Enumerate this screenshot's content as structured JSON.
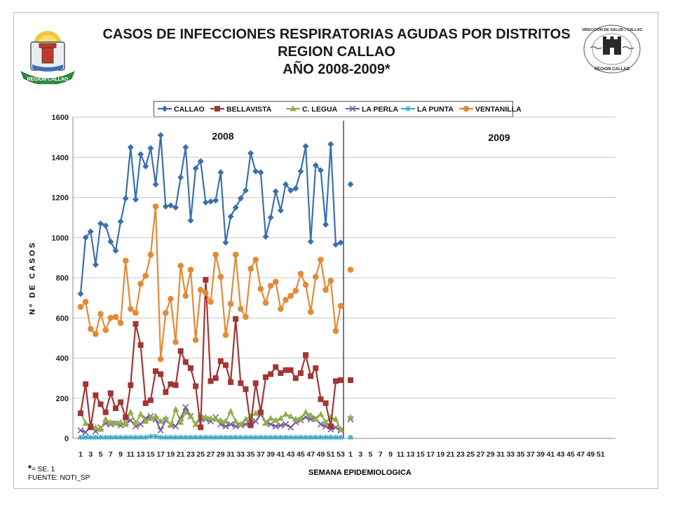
{
  "header": {
    "title_line1": "CASOS DE INFECCIONES RESPIRATORIAS AGUDAS POR DISTRITOS",
    "title_line2": "REGION  CALLAO",
    "title_line3": "AÑO 2008-2009*",
    "logo_left_text": "REGION CALLAO",
    "logo_right_text_top": "DIRECCIÓN DE SALUD I CALLAO",
    "logo_right_text_bottom": "REGION CALLAO"
  },
  "footer": {
    "note_star": "*",
    "note_text": "= SE. 1",
    "source": "FUENTE: NOTI_SP"
  },
  "colors": {
    "CALLAO": "#3a70b0",
    "BELLAVISTA": "#a33535",
    "C. LEGUA": "#8fb04a",
    "LA PERLA": "#7a5a9e",
    "LA PUNTA": "#3aa8c6",
    "VENTANILLA": "#e28a36"
  },
  "chart_data": {
    "type": "line",
    "xlabel": "SEMANA EPIDEMIOLOGICA",
    "ylabel": "Nº DE CASOS",
    "ylim": [
      0,
      1600
    ],
    "yticks": [
      0,
      200,
      400,
      600,
      800,
      1000,
      1200,
      1400,
      1600
    ],
    "grid": true,
    "legend_position": "top",
    "period_labels": [
      "2008",
      "2009"
    ],
    "x_2008_ticks": [
      "1",
      "3",
      "5",
      "7",
      "9",
      "11",
      "13",
      "15",
      "17",
      "19",
      "21",
      "23",
      "25",
      "27",
      "29",
      "31",
      "33",
      "35",
      "37",
      "39",
      "41",
      "43",
      "45",
      "47",
      "49",
      "51",
      "53"
    ],
    "x_2009_ticks": [
      "1",
      "3",
      "5",
      "7",
      "9",
      "11",
      "13",
      "15",
      "17",
      "19",
      "21",
      "23",
      "25",
      "27",
      "29",
      "31",
      "33",
      "35",
      "37",
      "39",
      "41",
      "43",
      "45",
      "47",
      "49",
      "51"
    ],
    "series": [
      {
        "name": "CALLAO",
        "marker": "diamond",
        "values_2008": [
          720,
          1000,
          1030,
          865,
          1070,
          1060,
          980,
          935,
          1080,
          1195,
          1450,
          1190,
          1415,
          1355,
          1445,
          1265,
          1510,
          1155,
          1160,
          1150,
          1300,
          1450,
          1085,
          1345,
          1380,
          1175,
          1180,
          1185,
          1325,
          975,
          1105,
          1150,
          1195,
          1235,
          1420,
          1330,
          1325,
          1005,
          1100,
          1230,
          1135,
          1265,
          1235,
          1245,
          1330,
          1455,
          980,
          1360,
          1335,
          1065,
          1465,
          965,
          975
        ],
        "values_2009": [
          1265
        ]
      },
      {
        "name": "BELLAVISTA",
        "marker": "square",
        "values_2008": [
          125,
          270,
          55,
          215,
          170,
          130,
          225,
          150,
          180,
          105,
          265,
          570,
          465,
          175,
          190,
          335,
          320,
          230,
          270,
          265,
          435,
          380,
          350,
          260,
          55,
          790,
          285,
          300,
          385,
          365,
          280,
          595,
          275,
          245,
          65,
          275,
          130,
          305,
          320,
          355,
          325,
          340,
          340,
          300,
          325,
          415,
          310,
          350,
          195,
          175,
          60,
          285,
          290
        ],
        "values_2009": [
          290
        ]
      },
      {
        "name": "C. LEGUA",
        "marker": "triangle",
        "values_2008": [
          130,
          75,
          55,
          55,
          45,
          95,
          80,
          75,
          80,
          70,
          130,
          75,
          120,
          85,
          100,
          110,
          85,
          100,
          65,
          145,
          80,
          130,
          110,
          70,
          115,
          105,
          100,
          95,
          90,
          85,
          135,
          85,
          70,
          95,
          110,
          125,
          140,
          75,
          100,
          90,
          100,
          120,
          110,
          95,
          100,
          130,
          115,
          95,
          120,
          80,
          105,
          95,
          45
        ],
        "values_2009": [
          105
        ]
      },
      {
        "name": "LA PERLA",
        "marker": "cross",
        "values_2008": [
          40,
          30,
          60,
          35,
          55,
          75,
          70,
          75,
          65,
          80,
          90,
          60,
          70,
          100,
          110,
          95,
          40,
          90,
          70,
          60,
          100,
          155,
          110,
          70,
          100,
          95,
          85,
          105,
          70,
          60,
          70,
          60,
          65,
          70,
          80,
          85,
          120,
          80,
          70,
          60,
          65,
          70,
          55,
          80,
          90,
          105,
          95,
          100,
          70,
          60,
          45,
          55,
          40
        ],
        "values_2009": [
          95
        ]
      },
      {
        "name": "LA PUNTA",
        "marker": "asterisk",
        "values_2008": [
          5,
          5,
          5,
          5,
          5,
          5,
          5,
          5,
          5,
          5,
          5,
          5,
          5,
          5,
          10,
          10,
          5,
          5,
          5,
          5,
          5,
          5,
          5,
          5,
          5,
          5,
          5,
          5,
          5,
          5,
          5,
          5,
          5,
          5,
          5,
          5,
          5,
          5,
          5,
          5,
          5,
          5,
          5,
          5,
          5,
          5,
          5,
          5,
          5,
          5,
          5,
          5,
          5
        ],
        "values_2009": [
          5
        ]
      },
      {
        "name": "VENTANILLA",
        "marker": "circle",
        "values_2008": [
          655,
          680,
          545,
          520,
          620,
          540,
          600,
          605,
          575,
          885,
          645,
          625,
          770,
          810,
          915,
          1155,
          395,
          625,
          695,
          480,
          860,
          710,
          840,
          490,
          740,
          725,
          680,
          915,
          805,
          515,
          670,
          915,
          645,
          605,
          845,
          890,
          745,
          675,
          760,
          780,
          645,
          690,
          710,
          735,
          820,
          765,
          630,
          805,
          890,
          740,
          785,
          535,
          660
        ],
        "values_2009": [
          840
        ]
      }
    ]
  }
}
